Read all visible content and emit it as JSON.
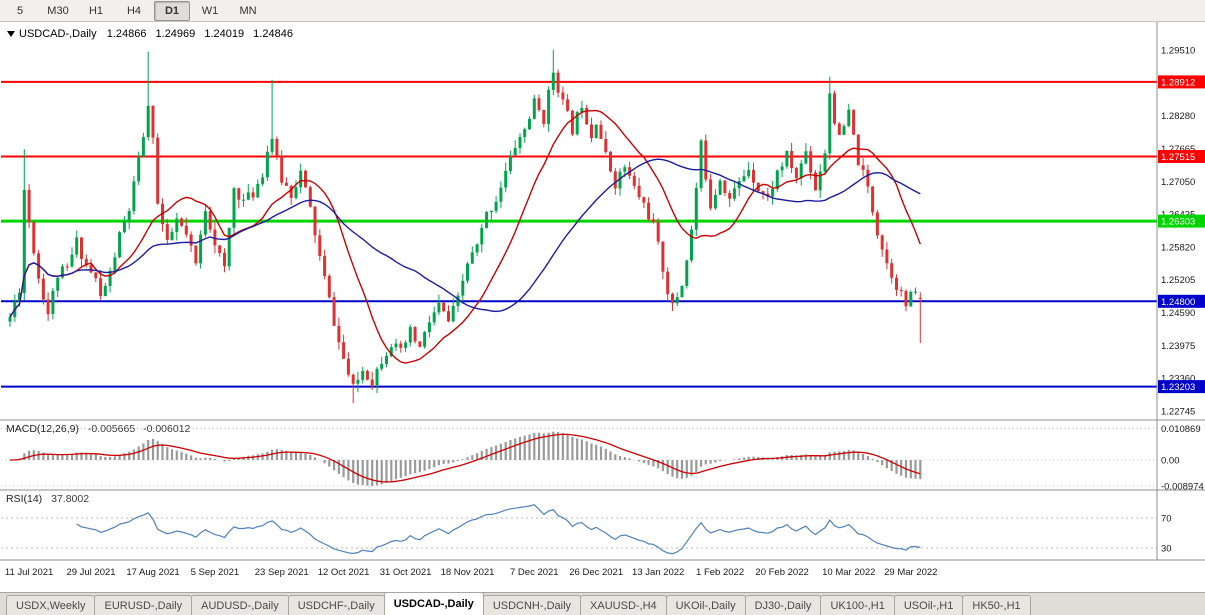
{
  "toolbar": {
    "timeframes": [
      {
        "label": "5",
        "active": false
      },
      {
        "label": "M30",
        "active": false
      },
      {
        "label": "H1",
        "active": false
      },
      {
        "label": "H4",
        "active": false
      },
      {
        "label": "D1",
        "active": true
      },
      {
        "label": "W1",
        "active": false
      },
      {
        "label": "MN",
        "active": false
      }
    ]
  },
  "chart_header": {
    "symbol": "USDCAD-,Daily",
    "open": "1.24866",
    "high": "1.24969",
    "low": "1.24019",
    "close": "1.24846"
  },
  "indicators": {
    "macd": {
      "name": "MACD(12,26,9)",
      "value": "-0.005665",
      "signal_value": "-0.006012"
    },
    "rsi": {
      "name": "RSI(14)",
      "value": "37.8002"
    }
  },
  "chart_data": {
    "type": "candlestick",
    "symbol": "USDCAD",
    "timeframe": "Daily",
    "bars_total": 192,
    "seed": 11,
    "colors": {
      "bull": "#00a44c",
      "bear": "#e03030",
      "ma_fast": "#cc0000",
      "ma_slow": "#1c1c9e",
      "macd_hist": "#9a9a9a",
      "macd_signal": "#cc0000",
      "rsi": "#4f81bd",
      "level_red": "#ff0000",
      "level_green": "#00d500",
      "level_blue": "#0000cc"
    },
    "last_candle": {
      "open": 1.24866,
      "high": 1.24969,
      "low": 1.24019,
      "close": 1.24846
    },
    "ma_periods": {
      "fast": 15,
      "slow": 40
    },
    "price_path": [
      [
        0,
        1.245
      ],
      [
        2,
        1.2505
      ],
      [
        3,
        1.269
      ],
      [
        4,
        1.263
      ],
      [
        6,
        1.2525
      ],
      [
        8,
        1.2458
      ],
      [
        10,
        1.253
      ],
      [
        12,
        1.254
      ],
      [
        14,
        1.2592
      ],
      [
        16,
        1.2548
      ],
      [
        18,
        1.252
      ],
      [
        19,
        1.2487
      ],
      [
        21,
        1.2532
      ],
      [
        23,
        1.2602
      ],
      [
        25,
        1.2652
      ],
      [
        27,
        1.2742
      ],
      [
        28,
        1.2792
      ],
      [
        29,
        1.2838
      ],
      [
        30,
        1.2795
      ],
      [
        31,
        1.2662
      ],
      [
        33,
        1.2585
      ],
      [
        35,
        1.2632
      ],
      [
        37,
        1.2602
      ],
      [
        39,
        1.2548
      ],
      [
        41,
        1.2655
      ],
      [
        43,
        1.2592
      ],
      [
        45,
        1.2538
      ],
      [
        47,
        1.2692
      ],
      [
        49,
        1.2668
      ],
      [
        51,
        1.2682
      ],
      [
        53,
        1.2722
      ],
      [
        54,
        1.2762
      ],
      [
        55,
        1.2788
      ],
      [
        56,
        1.2742
      ],
      [
        57,
        1.2708
      ],
      [
        59,
        1.2682
      ],
      [
        61,
        1.2722
      ],
      [
        63,
        1.2652
      ],
      [
        65,
        1.2562
      ],
      [
        67,
        1.2482
      ],
      [
        69,
        1.2402
      ],
      [
        71,
        1.2342
      ],
      [
        72,
        1.2315
      ],
      [
        74,
        1.2352
      ],
      [
        76,
        1.2332
      ],
      [
        78,
        1.2372
      ],
      [
        80,
        1.2402
      ],
      [
        82,
        1.2382
      ],
      [
        84,
        1.2422
      ],
      [
        86,
        1.2392
      ],
      [
        88,
        1.2442
      ],
      [
        90,
        1.2472
      ],
      [
        92,
        1.2442
      ],
      [
        94,
        1.2482
      ],
      [
        96,
        1.2552
      ],
      [
        98,
        1.2582
      ],
      [
        100,
        1.2642
      ],
      [
        102,
        1.2672
      ],
      [
        104,
        1.2722
      ],
      [
        106,
        1.2772
      ],
      [
        108,
        1.2802
      ],
      [
        110,
        1.2852
      ],
      [
        112,
        1.2822
      ],
      [
        114,
        1.2912
      ],
      [
        115,
        1.2882
      ],
      [
        116,
        1.2852
      ],
      [
        118,
        1.2802
      ],
      [
        120,
        1.2852
      ],
      [
        122,
        1.2792
      ],
      [
        123,
        1.2822
      ],
      [
        125,
        1.2752
      ],
      [
        127,
        1.2702
      ],
      [
        129,
        1.2732
      ],
      [
        131,
        1.2692
      ],
      [
        133,
        1.2662
      ],
      [
        135,
        1.2622
      ],
      [
        136,
        1.2582
      ],
      [
        138,
        1.2502
      ],
      [
        139,
        1.2468
      ],
      [
        141,
        1.2512
      ],
      [
        143,
        1.2612
      ],
      [
        145,
        1.2772
      ],
      [
        147,
        1.2662
      ],
      [
        149,
        1.2712
      ],
      [
        151,
        1.2672
      ],
      [
        153,
        1.2702
      ],
      [
        155,
        1.2732
      ],
      [
        157,
        1.2692
      ],
      [
        159,
        1.2672
      ],
      [
        161,
        1.2722
      ],
      [
        163,
        1.2752
      ],
      [
        165,
        1.2712
      ],
      [
        167,
        1.2762
      ],
      [
        169,
        1.2692
      ],
      [
        171,
        1.2762
      ],
      [
        172,
        1.2872
      ],
      [
        173,
        1.2822
      ],
      [
        174,
        1.2782
      ],
      [
        176,
        1.2832
      ],
      [
        178,
        1.2742
      ],
      [
        180,
        1.2692
      ],
      [
        182,
        1.2612
      ],
      [
        184,
        1.2552
      ],
      [
        186,
        1.2512
      ],
      [
        188,
        1.2472
      ],
      [
        190,
        1.2502
      ],
      [
        191,
        1.24846
      ]
    ],
    "overrides": [
      {
        "bar": 3,
        "high": 1.2765
      },
      {
        "bar": 29,
        "high": 1.2948
      },
      {
        "bar": 55,
        "high": 1.2895
      },
      {
        "bar": 72,
        "low": 1.2289
      },
      {
        "bar": 114,
        "high": 1.2951
      },
      {
        "bar": 172,
        "high": 1.2901
      },
      {
        "bar": 191,
        "open": 1.24866,
        "high": 1.24969,
        "low": 1.24019,
        "close": 1.24846
      }
    ],
    "h_lines": [
      {
        "price": 1.28912,
        "label": "1.28912",
        "color": "#ff0000",
        "width": 2
      },
      {
        "price": 1.27515,
        "label": "1.27515",
        "color": "#ff0000",
        "width": 2
      },
      {
        "price": 1.26303,
        "label": "1.26303",
        "color": "#00d500",
        "width": 3
      },
      {
        "price": 1.248,
        "label": "1.24800",
        "color": "#0000cc",
        "width": 2
      },
      {
        "price": 1.23203,
        "label": "1.23203",
        "color": "#0000cc",
        "width": 2
      }
    ],
    "y_axis": [
      {
        "text": "1.29510",
        "price": 1.2951
      },
      {
        "text": "1.28280",
        "price": 1.2828
      },
      {
        "text": "1.27665",
        "price": 1.27665
      },
      {
        "text": "1.27050",
        "price": 1.2705
      },
      {
        "text": "1.26435",
        "price": 1.26435
      },
      {
        "text": "1.25820",
        "price": 1.2582
      },
      {
        "text": "1.25205",
        "price": 1.25205
      },
      {
        "text": "1.24590",
        "price": 1.2459
      },
      {
        "text": "1.23975",
        "price": 1.23975
      },
      {
        "text": "1.23360",
        "price": 1.2336
      },
      {
        "text": "1.22745",
        "price": 1.22745
      }
    ],
    "x_axis": {
      "labels": [
        "11 Jul 2021",
        "29 Jul 2021",
        "17 Aug 2021",
        "5 Sep 2021",
        "23 Sep 2021",
        "12 Oct 2021",
        "31 Oct 2021",
        "18 Nov 2021",
        "7 Dec 2021",
        "26 Dec 2021",
        "13 Jan 2022",
        "1 Feb 2022",
        "20 Feb 2022",
        "10 Mar 2022",
        "29 Mar 2022"
      ],
      "bars": [
        4,
        17,
        30,
        43,
        57,
        70,
        83,
        96,
        110,
        123,
        136,
        149,
        162,
        176,
        189
      ]
    },
    "macd_axis": [
      {
        "text": "0.010869",
        "value": 0.010869
      },
      {
        "text": "0.00",
        "value": 0
      },
      {
        "text": "-0.008974",
        "value": -0.008974
      }
    ],
    "rsi_axis": [
      {
        "text": "70",
        "value": 70
      },
      {
        "text": "30",
        "value": 30
      }
    ]
  },
  "tabbar": {
    "tabs": [
      {
        "label": "USDX,Weekly",
        "active": false
      },
      {
        "label": "EURUSD-,Daily",
        "active": false
      },
      {
        "label": "AUDUSD-,Daily",
        "active": false
      },
      {
        "label": "USDCHF-,Daily",
        "active": false
      },
      {
        "label": "USDCAD-,Daily",
        "active": true
      },
      {
        "label": "USDCNH-,Daily",
        "active": false
      },
      {
        "label": "XAUUSD-,H4",
        "active": false
      },
      {
        "label": "UKOil-,Daily",
        "active": false
      },
      {
        "label": "DJ30-,Daily",
        "active": false
      },
      {
        "label": "UK100-,H1",
        "active": false
      },
      {
        "label": "USOil-,H1",
        "active": false
      },
      {
        "label": "HK50-,H1",
        "active": false
      }
    ]
  }
}
